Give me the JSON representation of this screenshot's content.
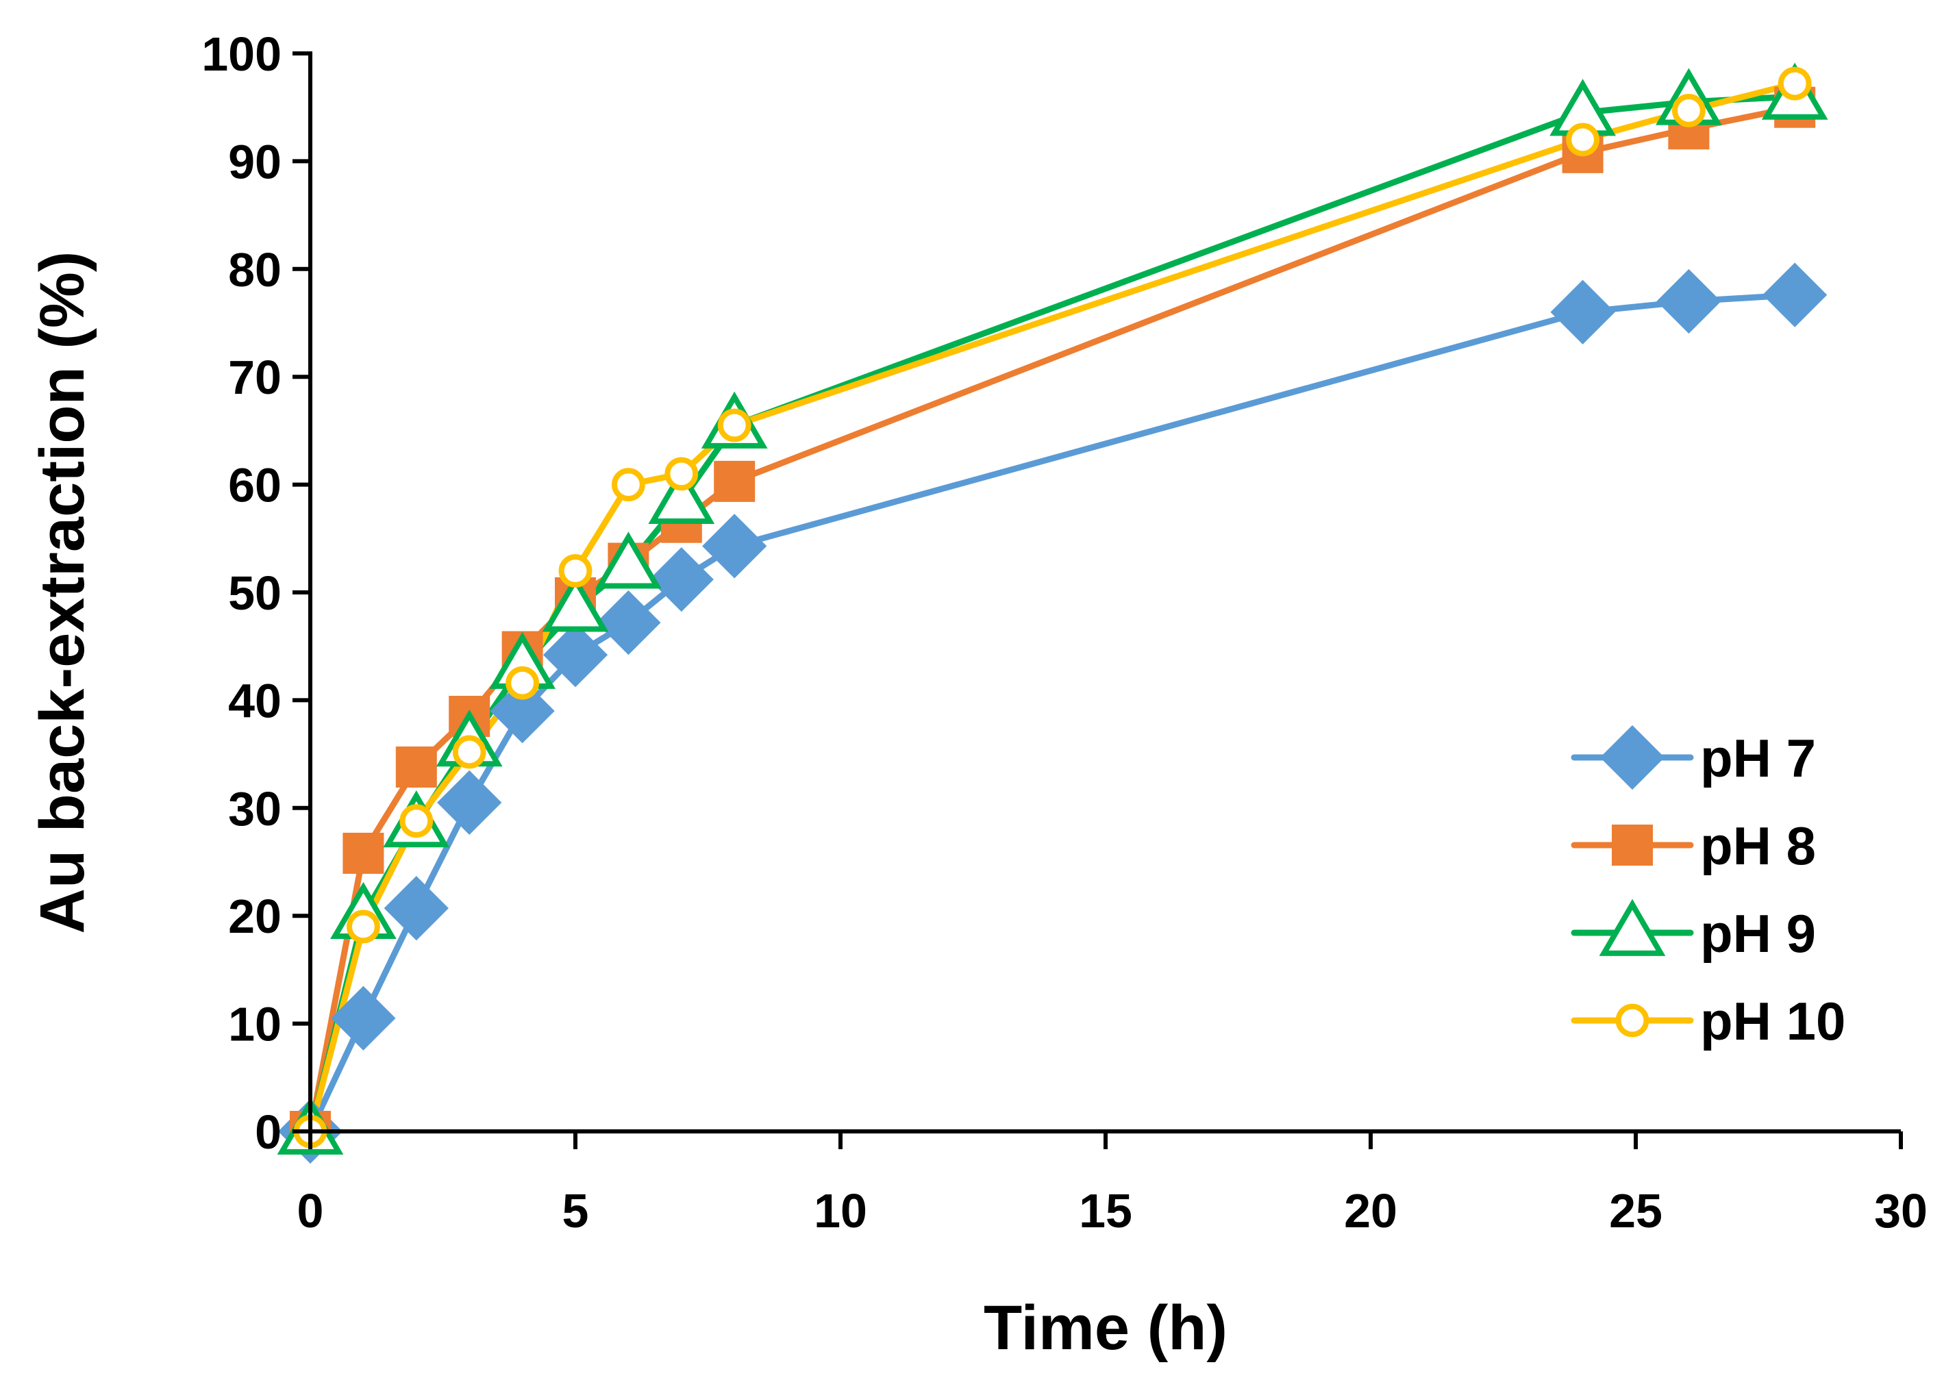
{
  "chart_data": {
    "type": "line",
    "title": "",
    "xlabel": "Time (h)",
    "ylabel": "Au back-extraction (%)",
    "xlim": [
      0,
      30
    ],
    "ylim": [
      0,
      100
    ],
    "x_ticks": [
      0,
      5,
      10,
      15,
      20,
      25,
      30
    ],
    "y_ticks": [
      0,
      10,
      20,
      30,
      40,
      50,
      60,
      70,
      80,
      90,
      100
    ],
    "x_tick_labels": [
      "0",
      "5",
      "10",
      "15",
      "20",
      "25",
      "30"
    ],
    "y_tick_labels": [
      "0",
      "10",
      "20",
      "30",
      "40",
      "50",
      "60",
      "70",
      "80",
      "90",
      "100"
    ],
    "grid": false,
    "legend_position": "bottom-right",
    "series": [
      {
        "name": "pH 7",
        "marker": "diamond",
        "color": "#5B9BD5",
        "x": [
          0,
          1,
          2,
          3,
          4,
          5,
          6,
          7,
          8,
          24,
          26,
          28
        ],
        "y": [
          0,
          10.5,
          20.7,
          30.5,
          39,
          44.2,
          47.2,
          51.2,
          54.3,
          76,
          77,
          77.6
        ]
      },
      {
        "name": "pH 8",
        "marker": "square",
        "color": "#ED7D31",
        "x": [
          0,
          1,
          2,
          3,
          4,
          5,
          6,
          7,
          8,
          24,
          26,
          28
        ],
        "y": [
          0,
          25.8,
          33.8,
          38.5,
          44.5,
          49.5,
          52.7,
          56.5,
          60.3,
          90.8,
          93,
          95
        ]
      },
      {
        "name": "pH 9",
        "marker": "triangle",
        "color": "#00B050",
        "x": [
          0,
          1,
          2,
          3,
          4,
          5,
          6,
          7,
          8,
          24,
          26,
          28
        ],
        "y": [
          0,
          20,
          28.5,
          36,
          43.2,
          48.5,
          52.5,
          58.5,
          65.5,
          94.5,
          95.5,
          96
        ]
      },
      {
        "name": "pH 10",
        "marker": "circle",
        "color": "#FFC000",
        "x": [
          0,
          1,
          2,
          3,
          4,
          5,
          6,
          7,
          8,
          24,
          26,
          28
        ],
        "y": [
          0,
          19,
          28.8,
          35.2,
          41.6,
          52,
          60,
          61,
          65.5,
          92,
          94.7,
          97.2
        ]
      }
    ]
  }
}
